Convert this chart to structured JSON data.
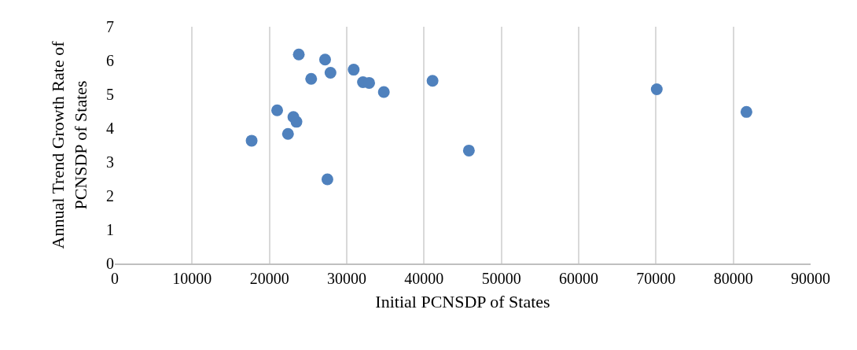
{
  "chart_data": {
    "type": "scatter",
    "xlabel": "Initial PCNSDP of States",
    "ylabel": "Annual Trend Growth Rate of PCNSDP of States",
    "x": [
      17700,
      21000,
      22400,
      23100,
      23500,
      23800,
      25400,
      27200,
      27500,
      27900,
      30900,
      32100,
      32900,
      34800,
      41100,
      45800,
      70100,
      81700
    ],
    "series": [
      {
        "color": "#4f81bd",
        "values": [
          3.63,
          4.53,
          3.83,
          4.33,
          4.19,
          6.18,
          5.46,
          6.03,
          2.49,
          5.64,
          5.73,
          5.36,
          5.34,
          5.07,
          5.4,
          3.34,
          5.15,
          4.48
        ]
      }
    ],
    "xlim": [
      0,
      90000
    ],
    "xticks": [
      0,
      10000,
      20000,
      30000,
      40000,
      50000,
      60000,
      70000,
      80000,
      90000
    ],
    "ylim": [
      0,
      7
    ],
    "yticks": [
      0,
      1,
      2,
      3,
      4,
      5,
      6,
      7
    ],
    "grid": "x",
    "marker": "circle"
  }
}
